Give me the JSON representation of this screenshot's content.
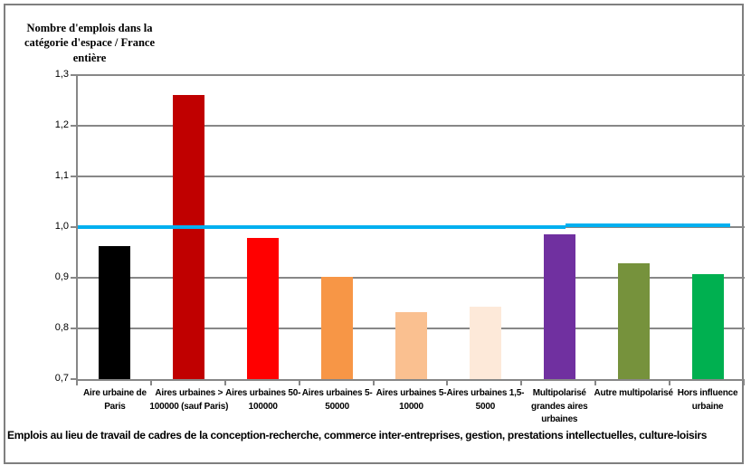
{
  "figure": {
    "background": "#FFFFFF",
    "border_color": "#7F7F7F"
  },
  "chart_data": {
    "type": "bar",
    "title": "Nombre d'emplois dans la catégorie d'espace / France entière",
    "caption": "Emplois au lieu de travail de cadres de la conception-recherche, commerce inter-entreprises, gestion, prestations intellectuelles, culture-loisirs",
    "categories": [
      "Aire urbaine de Paris",
      "Aires urbaines > 100000 (sauf Paris)",
      "Aires urbaines 50-100000",
      "Aires urbaines 5-50000",
      "Aires urbaines 5-10000",
      "Aires urbaines 1,5-5000",
      "Multipolarisé grandes aires urbaines",
      "Autre multipolarisé",
      "Hors influence urbaine"
    ],
    "values": [
      0.962,
      1.261,
      0.979,
      0.902,
      0.832,
      0.843,
      0.986,
      0.928,
      0.908
    ],
    "bar_colors": [
      "#000000",
      "#C00000",
      "#FF0000",
      "#F79646",
      "#FAC090",
      "#FDE9D9",
      "#7030A0",
      "#76923C",
      "#00B050"
    ],
    "reference_line": {
      "value": 1.0,
      "color": "#00B0F0"
    },
    "ylim": [
      0.7,
      1.3
    ],
    "y_ticks": {
      "values": [
        0.7,
        0.8,
        0.9,
        1.0,
        1.1,
        1.2,
        1.3
      ],
      "labels": [
        "0,7",
        "0,8",
        "0,9",
        "1,0",
        "1,1",
        "1,2",
        "1,3"
      ]
    },
    "grid": true,
    "legend": "none",
    "xlabel": "",
    "ylabel": "Nombre d'emplois dans la catégorie d'espace / France entière",
    "colors": {
      "gridline": "#878787",
      "axis": "#878787",
      "text": "#000000"
    }
  }
}
